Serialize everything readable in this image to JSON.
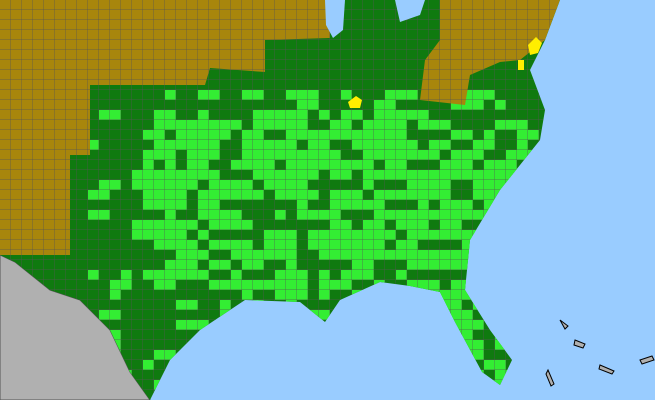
{
  "map": {
    "colors": {
      "ocean": "#99ccff",
      "foreign_land": "#b0b0b0",
      "present": "#0f7a0f",
      "present_highlight": "#33ee33",
      "absent": "#a8860c",
      "special": "#ffee00",
      "other": "#22bbaa",
      "county_lines": "#555555"
    }
  }
}
